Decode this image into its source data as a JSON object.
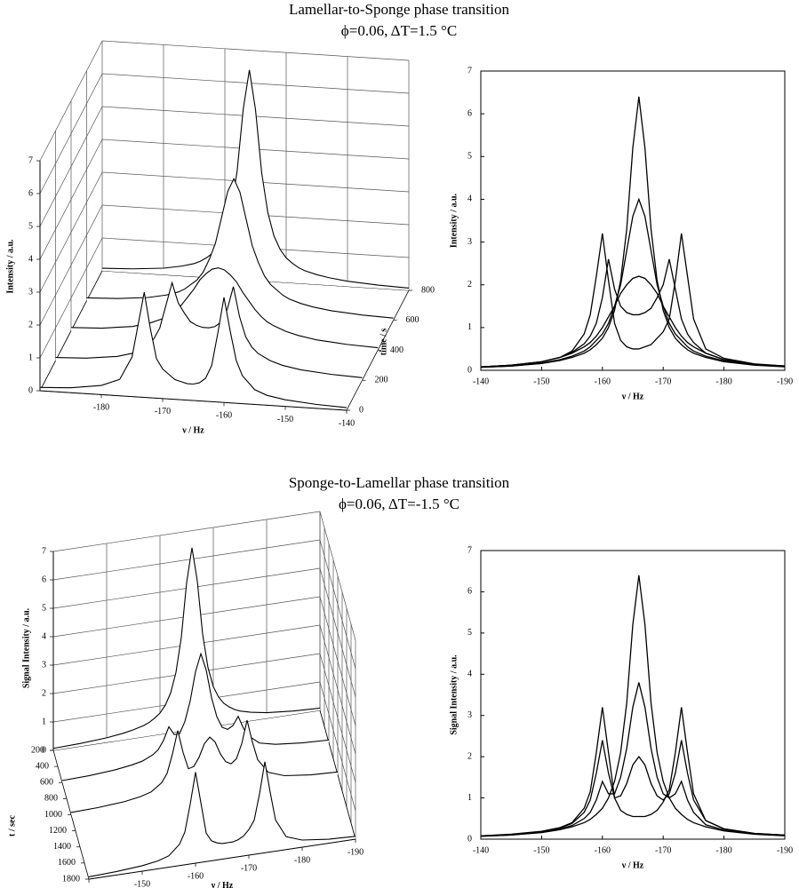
{
  "chart_data": [
    {
      "type": "waterfall3d",
      "title": "Lamellar-to-Sponge phase transition",
      "subtitle": "ϕ=0.06, ΔT=1.5 °C",
      "xlabel": "ν / Hz",
      "ylabel": "Intensity / a.u.",
      "zlabel": "time / s",
      "color": "#000000",
      "grid": true,
      "xlim": [
        -190,
        -140
      ],
      "xticks": [
        -180,
        -170,
        -160,
        -150,
        -140
      ],
      "ylim": [
        0,
        7
      ],
      "yticks": [
        0,
        1,
        2,
        3,
        4,
        5,
        6,
        7
      ],
      "zlim": [
        0,
        800
      ],
      "zticks": [
        0,
        200,
        400,
        600,
        800
      ],
      "x": [
        -140,
        -145,
        -150,
        -153,
        -155,
        -157,
        -158,
        -159,
        -160,
        -161,
        -162,
        -163,
        -164,
        -165,
        -166,
        -167,
        -168,
        -169,
        -170,
        -171,
        -172,
        -173,
        -174,
        -175,
        -177,
        -180,
        -185,
        -190
      ],
      "series": [
        {
          "z": 0,
          "values": [
            0.08,
            0.12,
            0.2,
            0.3,
            0.45,
            0.85,
            1.3,
            2.2,
            3.2,
            2.1,
            1.1,
            0.7,
            0.55,
            0.5,
            0.5,
            0.55,
            0.6,
            0.75,
            0.9,
            1.2,
            2.1,
            3.2,
            2.2,
            1.2,
            0.5,
            0.28,
            0.15,
            0.1
          ]
        },
        {
          "z": 200,
          "values": [
            0.08,
            0.12,
            0.2,
            0.3,
            0.42,
            0.62,
            0.8,
            1.1,
            1.7,
            2.6,
            1.9,
            1.5,
            1.35,
            1.3,
            1.3,
            1.35,
            1.45,
            1.7,
            2.0,
            2.6,
            1.9,
            1.2,
            0.85,
            0.65,
            0.4,
            0.25,
            0.14,
            0.1
          ]
        },
        {
          "z": 400,
          "values": [
            0.08,
            0.12,
            0.2,
            0.3,
            0.4,
            0.55,
            0.65,
            0.8,
            1.0,
            1.25,
            1.5,
            1.8,
            2.0,
            2.15,
            2.2,
            2.15,
            2.0,
            1.8,
            1.5,
            1.25,
            1.0,
            0.8,
            0.65,
            0.55,
            0.4,
            0.25,
            0.14,
            0.1
          ]
        },
        {
          "z": 600,
          "values": [
            0.07,
            0.1,
            0.17,
            0.25,
            0.33,
            0.45,
            0.55,
            0.7,
            0.85,
            1.1,
            1.5,
            2.0,
            2.8,
            3.6,
            4.0,
            3.6,
            2.8,
            2.0,
            1.5,
            1.1,
            0.85,
            0.7,
            0.55,
            0.45,
            0.33,
            0.22,
            0.13,
            0.09
          ]
        },
        {
          "z": 800,
          "values": [
            0.07,
            0.1,
            0.16,
            0.23,
            0.3,
            0.4,
            0.48,
            0.6,
            0.75,
            1.0,
            1.4,
            2.1,
            3.3,
            5.2,
            6.4,
            5.2,
            3.3,
            2.1,
            1.4,
            1.0,
            0.75,
            0.6,
            0.48,
            0.4,
            0.3,
            0.2,
            0.12,
            0.08
          ]
        }
      ]
    },
    {
      "type": "line",
      "xlabel": "ν / Hz",
      "ylabel": "Intensity / a.u.",
      "color": "#000000",
      "xlim": [
        -140,
        -190
      ],
      "xticks": [
        -140,
        -150,
        -160,
        -170,
        -180,
        -190
      ],
      "ylim": [
        0,
        7
      ],
      "yticks": [
        0,
        1,
        2,
        3,
        4,
        5,
        6,
        7
      ],
      "x": [
        -140,
        -145,
        -150,
        -153,
        -155,
        -157,
        -158,
        -159,
        -160,
        -161,
        -162,
        -163,
        -164,
        -165,
        -166,
        -167,
        -168,
        -169,
        -170,
        -171,
        -172,
        -173,
        -174,
        -175,
        -177,
        -180,
        -185,
        -190
      ],
      "series": [
        {
          "values": [
            0.08,
            0.12,
            0.2,
            0.3,
            0.45,
            0.85,
            1.3,
            2.2,
            3.2,
            2.1,
            1.1,
            0.7,
            0.55,
            0.5,
            0.5,
            0.55,
            0.6,
            0.75,
            0.9,
            1.2,
            2.1,
            3.2,
            2.2,
            1.2,
            0.5,
            0.28,
            0.15,
            0.1
          ]
        },
        {
          "values": [
            0.08,
            0.12,
            0.2,
            0.3,
            0.42,
            0.62,
            0.8,
            1.1,
            1.7,
            2.6,
            1.9,
            1.5,
            1.35,
            1.3,
            1.3,
            1.35,
            1.45,
            1.7,
            2.0,
            2.6,
            1.9,
            1.2,
            0.85,
            0.65,
            0.4,
            0.25,
            0.14,
            0.1
          ]
        },
        {
          "values": [
            0.08,
            0.12,
            0.2,
            0.3,
            0.4,
            0.55,
            0.65,
            0.8,
            1.0,
            1.25,
            1.5,
            1.8,
            2.0,
            2.15,
            2.2,
            2.15,
            2.0,
            1.8,
            1.5,
            1.25,
            1.0,
            0.8,
            0.65,
            0.55,
            0.4,
            0.25,
            0.14,
            0.1
          ]
        },
        {
          "values": [
            0.07,
            0.1,
            0.17,
            0.25,
            0.33,
            0.45,
            0.55,
            0.7,
            0.85,
            1.1,
            1.5,
            2.0,
            2.8,
            3.6,
            4.0,
            3.6,
            2.8,
            2.0,
            1.5,
            1.1,
            0.85,
            0.7,
            0.55,
            0.45,
            0.33,
            0.22,
            0.13,
            0.09
          ]
        },
        {
          "values": [
            0.07,
            0.1,
            0.16,
            0.23,
            0.3,
            0.4,
            0.48,
            0.6,
            0.75,
            1.0,
            1.4,
            2.1,
            3.3,
            5.2,
            6.4,
            5.2,
            3.3,
            2.1,
            1.4,
            1.0,
            0.75,
            0.6,
            0.48,
            0.4,
            0.3,
            0.2,
            0.12,
            0.08
          ]
        }
      ]
    },
    {
      "type": "waterfall3d",
      "title": "Sponge-to-Lamellar phase transition",
      "subtitle": "ϕ=0.06, ΔT=-1.5 °C",
      "xlabel": "ν / Hz",
      "ylabel": "Signal Intensity / a.u.",
      "zlabel": "t / sec",
      "color": "#000000",
      "grid": true,
      "xlim": [
        -140,
        -190
      ],
      "xticks": [
        -140,
        -150,
        -160,
        -170,
        -180,
        -190
      ],
      "ylim": [
        0,
        7
      ],
      "yticks": [
        0,
        1,
        2,
        3,
        4,
        5,
        6,
        7
      ],
      "zlim": [
        200,
        1800
      ],
      "zticks": [
        200,
        400,
        600,
        800,
        1000,
        1200,
        1400,
        1600,
        1800
      ],
      "x": [
        -140,
        -145,
        -150,
        -153,
        -155,
        -157,
        -158,
        -159,
        -160,
        -161,
        -162,
        -163,
        -164,
        -165,
        -166,
        -167,
        -168,
        -169,
        -170,
        -171,
        -172,
        -173,
        -174,
        -175,
        -177,
        -180,
        -185,
        -190
      ],
      "series": [
        {
          "z": 200,
          "values": [
            0.07,
            0.1,
            0.16,
            0.23,
            0.3,
            0.4,
            0.48,
            0.6,
            0.75,
            1.0,
            1.4,
            2.1,
            3.3,
            5.2,
            6.4,
            5.2,
            3.3,
            2.1,
            1.4,
            1.0,
            0.75,
            0.6,
            0.48,
            0.4,
            0.3,
            0.2,
            0.12,
            0.08
          ]
        },
        {
          "z": 600,
          "values": [
            0.07,
            0.1,
            0.17,
            0.25,
            0.33,
            0.5,
            0.65,
            0.95,
            1.4,
            1.1,
            1.1,
            1.5,
            2.2,
            3.2,
            3.8,
            3.2,
            2.2,
            1.5,
            1.1,
            1.0,
            1.1,
            1.4,
            0.95,
            0.65,
            0.35,
            0.22,
            0.13,
            0.09
          ]
        },
        {
          "z": 1000,
          "values": [
            0.08,
            0.11,
            0.18,
            0.27,
            0.38,
            0.65,
            0.95,
            1.6,
            2.4,
            1.6,
            1.0,
            1.05,
            1.35,
            1.8,
            2.0,
            1.8,
            1.35,
            1.05,
            0.95,
            1.1,
            1.6,
            2.4,
            1.6,
            0.95,
            0.45,
            0.25,
            0.14,
            0.1
          ]
        },
        {
          "z": 1800,
          "values": [
            0.08,
            0.12,
            0.19,
            0.28,
            0.4,
            0.75,
            1.15,
            2.1,
            3.2,
            2.1,
            1.0,
            0.7,
            0.6,
            0.55,
            0.55,
            0.55,
            0.6,
            0.7,
            0.9,
            1.2,
            2.1,
            3.2,
            2.1,
            1.1,
            0.45,
            0.25,
            0.14,
            0.1
          ]
        }
      ]
    },
    {
      "type": "line",
      "xlabel": "ν / Hz",
      "ylabel": "Signal Intensity / a.u.",
      "color": "#000000",
      "xlim": [
        -140,
        -190
      ],
      "xticks": [
        -140,
        -150,
        -160,
        -170,
        -180,
        -190
      ],
      "ylim": [
        0,
        7
      ],
      "yticks": [
        0,
        1,
        2,
        3,
        4,
        5,
        6,
        7
      ],
      "x": [
        -140,
        -145,
        -150,
        -153,
        -155,
        -157,
        -158,
        -159,
        -160,
        -161,
        -162,
        -163,
        -164,
        -165,
        -166,
        -167,
        -168,
        -169,
        -170,
        -171,
        -172,
        -173,
        -174,
        -175,
        -177,
        -180,
        -185,
        -190
      ],
      "series": [
        {
          "values": [
            0.07,
            0.1,
            0.16,
            0.23,
            0.3,
            0.4,
            0.48,
            0.6,
            0.75,
            1.0,
            1.4,
            2.1,
            3.3,
            5.2,
            6.4,
            5.2,
            3.3,
            2.1,
            1.4,
            1.0,
            0.75,
            0.6,
            0.48,
            0.4,
            0.3,
            0.2,
            0.12,
            0.08
          ]
        },
        {
          "values": [
            0.07,
            0.1,
            0.17,
            0.25,
            0.33,
            0.5,
            0.65,
            0.95,
            1.4,
            1.1,
            1.1,
            1.5,
            2.2,
            3.2,
            3.8,
            3.2,
            2.2,
            1.5,
            1.1,
            1.0,
            1.1,
            1.4,
            0.95,
            0.65,
            0.35,
            0.22,
            0.13,
            0.09
          ]
        },
        {
          "values": [
            0.08,
            0.11,
            0.18,
            0.27,
            0.38,
            0.65,
            0.95,
            1.6,
            2.4,
            1.6,
            1.0,
            1.05,
            1.35,
            1.8,
            2.0,
            1.8,
            1.35,
            1.05,
            0.95,
            1.1,
            1.6,
            2.4,
            1.6,
            0.95,
            0.45,
            0.25,
            0.14,
            0.1
          ]
        },
        {
          "values": [
            0.08,
            0.12,
            0.19,
            0.28,
            0.4,
            0.75,
            1.15,
            2.1,
            3.2,
            2.1,
            1.0,
            0.7,
            0.6,
            0.55,
            0.55,
            0.55,
            0.6,
            0.7,
            0.9,
            1.2,
            2.1,
            3.2,
            2.1,
            1.1,
            0.45,
            0.25,
            0.14,
            0.1
          ]
        }
      ]
    }
  ]
}
